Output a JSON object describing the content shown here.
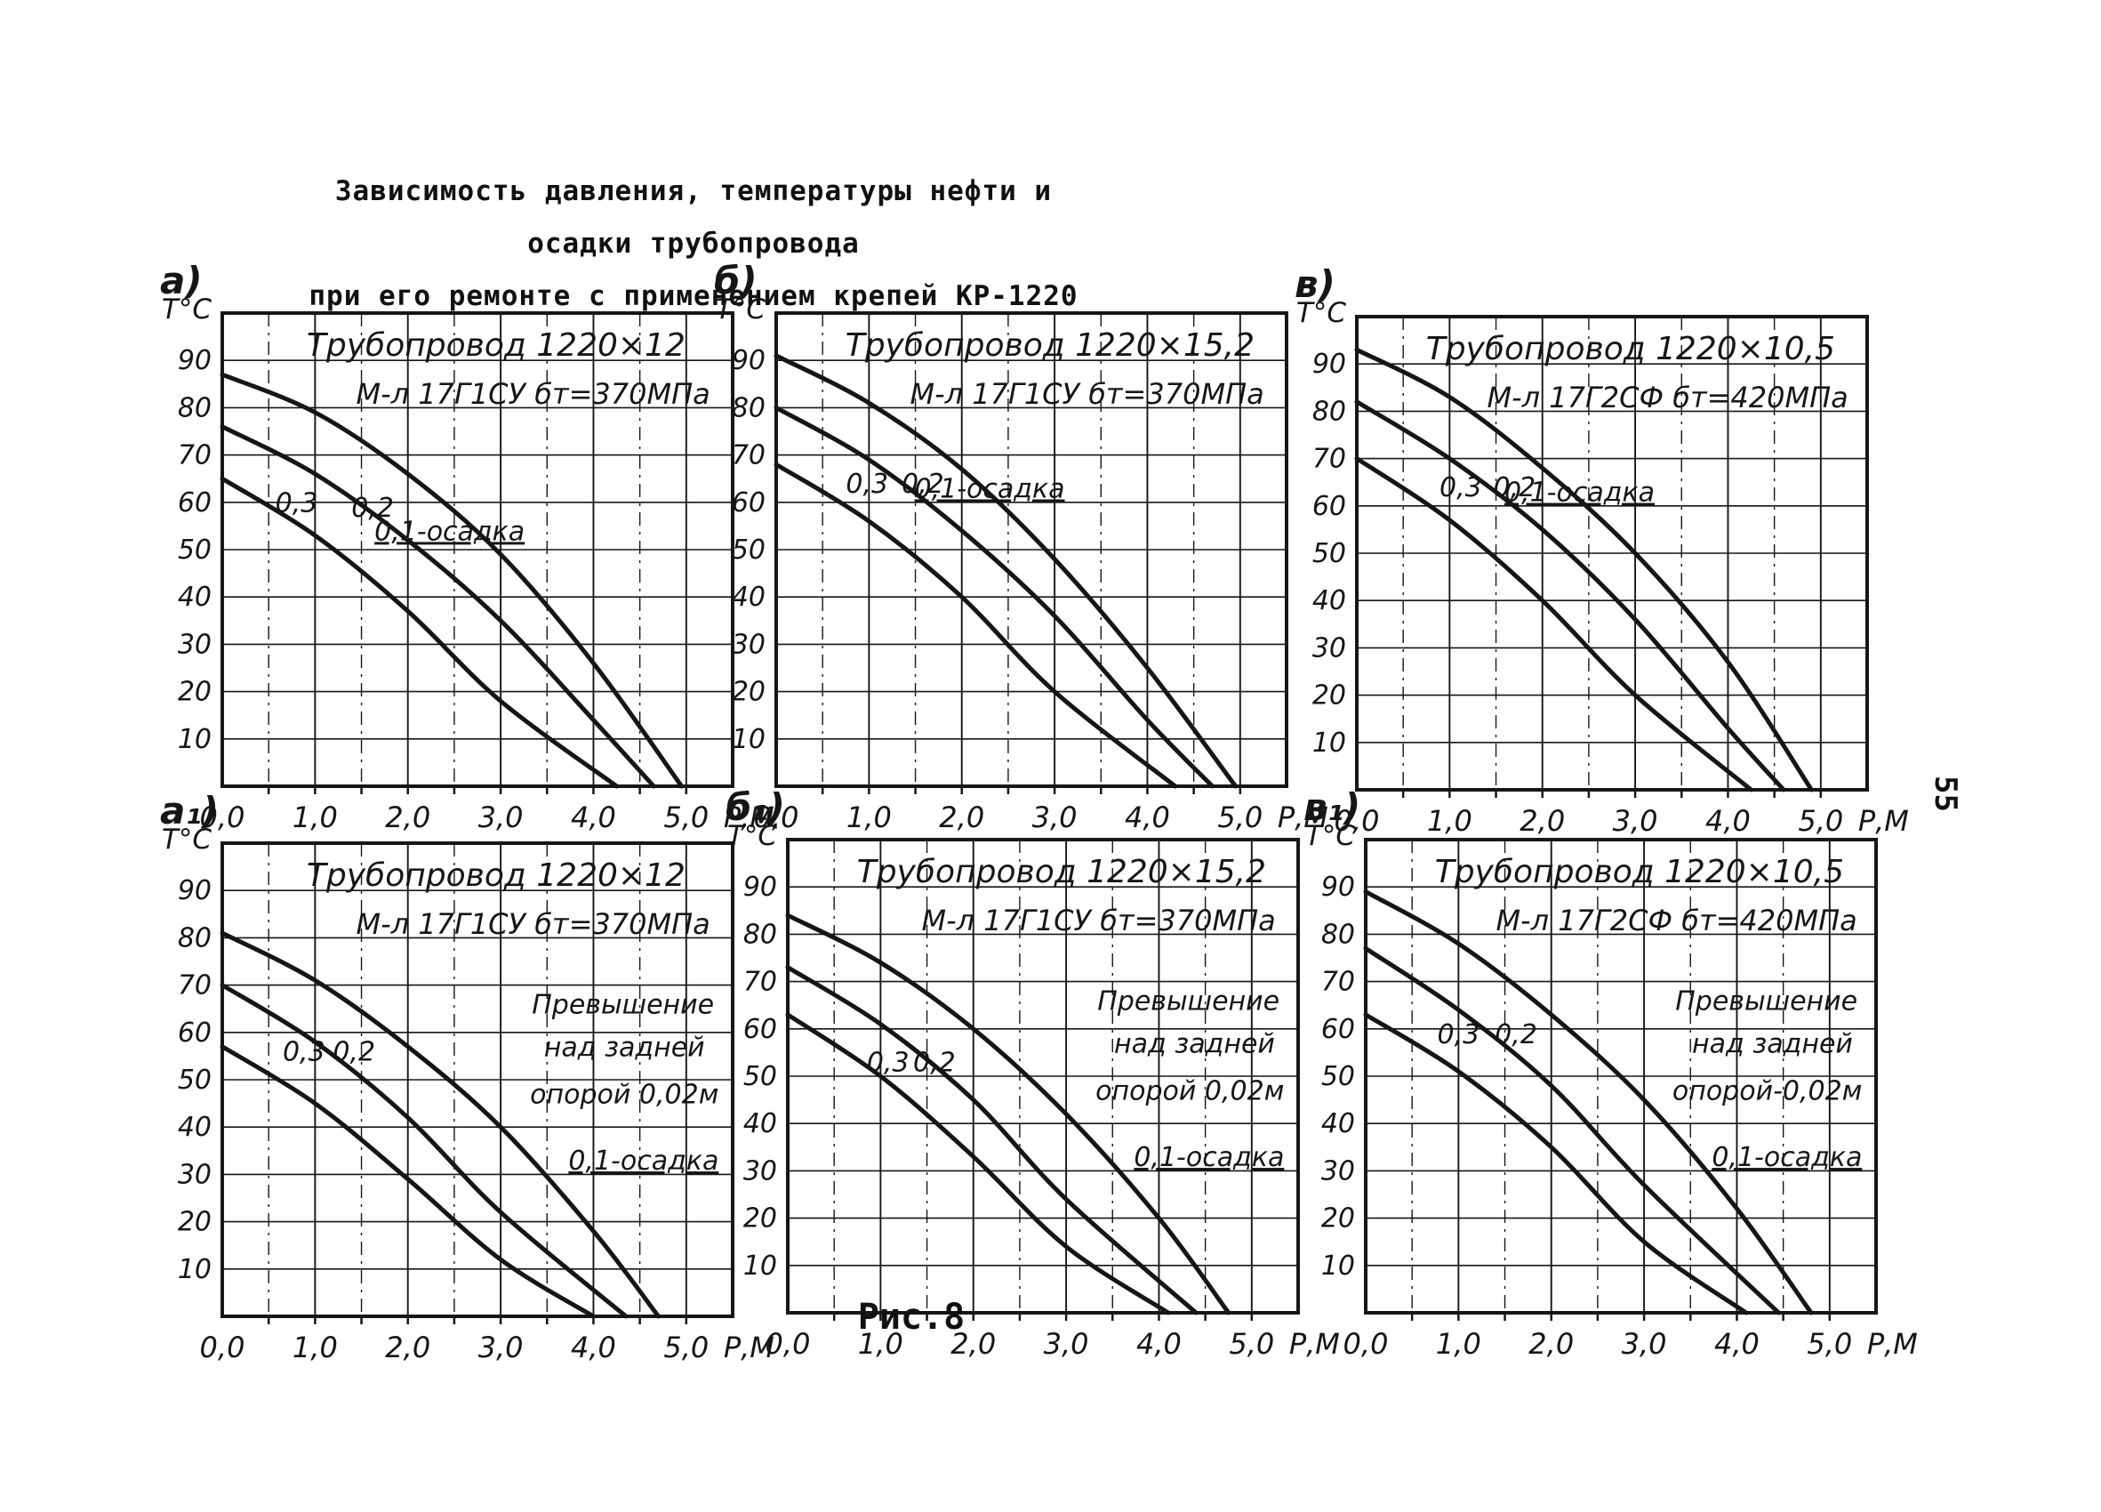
{
  "page": {
    "title_line1": "Зависимость давления, температуры нефти и осадки трубопровода",
    "title_line2": "при его ремонте с применением крепей КР-1220",
    "figure_caption": "Рис.8",
    "page_number": "55"
  },
  "chart_data": [
    {
      "type": "line",
      "panel_label": "а)",
      "title": "Трубопровод 1220×12",
      "subtitle": "М-л 17Г1СУ бт=370МПа",
      "ylabel": "Т°С",
      "xlabel": "Р,МПа",
      "x_ticks": [
        "0,0",
        "1,0",
        "2,0",
        "3,0",
        "4,0",
        "5,0"
      ],
      "y_ticks": [
        "90",
        "80",
        "70",
        "60",
        "50",
        "40",
        "30",
        "20",
        "10"
      ],
      "xlim": [
        0,
        5.5
      ],
      "ylim": [
        0,
        100
      ],
      "grid": "on",
      "series": [
        {
          "name": "0,1-осадка",
          "underline": true,
          "label_x": 2.45,
          "label_y": 52,
          "x": [
            0,
            1,
            2,
            3,
            4,
            4.95
          ],
          "y": [
            87,
            79,
            66,
            49,
            26,
            0
          ]
        },
        {
          "name": "0,2",
          "underline": false,
          "label_x": 1.62,
          "label_y": 57,
          "x": [
            0,
            1,
            2,
            3,
            4,
            4.65
          ],
          "y": [
            76,
            66,
            52,
            35,
            14,
            0
          ]
        },
        {
          "name": "0,3",
          "underline": false,
          "label_x": 0.8,
          "label_y": 58,
          "x": [
            0,
            1,
            2,
            3,
            4.25
          ],
          "y": [
            65,
            53,
            37,
            18,
            0
          ]
        }
      ],
      "annotation": []
    },
    {
      "type": "line",
      "panel_label": "б)",
      "title": "Трубопровод 1220×15,2",
      "subtitle": "М-л 17Г1СУ бт=370МПа",
      "ylabel": "Т°С",
      "xlabel": "Р,МПа",
      "x_ticks": [
        "0,0",
        "1,0",
        "2,0",
        "3,0",
        "4,0",
        "5,0"
      ],
      "y_ticks": [
        "90",
        "80",
        "70",
        "60",
        "50",
        "40",
        "30",
        "20",
        "10"
      ],
      "xlim": [
        0,
        5.5
      ],
      "ylim": [
        0,
        100
      ],
      "grid": "on",
      "series": [
        {
          "name": "0,1-осадка",
          "underline": true,
          "label_x": 2.3,
          "label_y": 61,
          "x": [
            0,
            1,
            2,
            3,
            4,
            4.95
          ],
          "y": [
            91,
            81,
            67,
            48,
            25,
            0
          ]
        },
        {
          "name": "0,2",
          "underline": false,
          "label_x": 1.58,
          "label_y": 62,
          "x": [
            0,
            1,
            2,
            3,
            4,
            4.7
          ],
          "y": [
            80,
            69,
            54,
            36,
            14,
            0
          ]
        },
        {
          "name": "0,3",
          "underline": false,
          "label_x": 0.98,
          "label_y": 62,
          "x": [
            0,
            1,
            2,
            3,
            4.3
          ],
          "y": [
            68,
            56,
            40,
            20,
            0
          ]
        }
      ],
      "annotation": []
    },
    {
      "type": "line",
      "panel_label": "в)",
      "title": "Трубопровод 1220×10,5",
      "subtitle": "М-л 17Г2СФ бт=420МПа",
      "ylabel": "Т°С",
      "xlabel": "Р,МПа",
      "x_ticks": [
        "0,0",
        "1,0",
        "2,0",
        "3,0",
        "4,0",
        "5,0"
      ],
      "y_ticks": [
        "90",
        "80",
        "70",
        "60",
        "50",
        "40",
        "30",
        "20",
        "10"
      ],
      "xlim": [
        0,
        5.5
      ],
      "ylim": [
        0,
        100
      ],
      "grid": "on",
      "series": [
        {
          "name": "0,1-осадка",
          "underline": true,
          "label_x": 2.4,
          "label_y": 61,
          "x": [
            0,
            1,
            2,
            3,
            4,
            4.9
          ],
          "y": [
            93,
            83,
            68,
            50,
            27,
            0
          ]
        },
        {
          "name": "0,2",
          "underline": false,
          "label_x": 1.7,
          "label_y": 62,
          "x": [
            0,
            1,
            2,
            3,
            4,
            4.6
          ],
          "y": [
            82,
            70,
            55,
            36,
            13,
            0
          ]
        },
        {
          "name": "0,3",
          "underline": false,
          "label_x": 1.12,
          "label_y": 62,
          "x": [
            0,
            1,
            2,
            3,
            4.25
          ],
          "y": [
            70,
            57,
            40,
            20,
            0
          ]
        }
      ],
      "annotation": []
    },
    {
      "type": "line",
      "panel_label": "а₁)",
      "title": "Трубопровод 1220×12",
      "subtitle": "М-л 17Г1СУ бт=370МПа",
      "ylabel": "Т°С",
      "xlabel": "Р,МПа",
      "x_ticks": [
        "0,0",
        "1,0",
        "2,0",
        "3,0",
        "4,0",
        "5,0"
      ],
      "y_ticks": [
        "90",
        "80",
        "70",
        "60",
        "50",
        "40",
        "30",
        "20",
        "10"
      ],
      "xlim": [
        0,
        5.5
      ],
      "ylim": [
        0,
        100
      ],
      "grid": "on",
      "series": [
        {
          "name": "0,1",
          "underline": false,
          "hide_label": true,
          "label_x": 2.6,
          "label_y": 40,
          "x": [
            0,
            1,
            2,
            3,
            4,
            4.7
          ],
          "y": [
            81,
            71,
            57,
            40,
            18,
            0
          ]
        },
        {
          "name": "0,2",
          "underline": false,
          "label_x": 1.42,
          "label_y": 54,
          "x": [
            0,
            1,
            2,
            3,
            4.35
          ],
          "y": [
            70,
            58,
            42,
            22,
            0
          ]
        },
        {
          "name": "0,3",
          "underline": false,
          "label_x": 0.88,
          "label_y": 54,
          "x": [
            0,
            1,
            2,
            3,
            4.0
          ],
          "y": [
            57,
            45,
            29,
            12,
            0
          ]
        }
      ],
      "annotation": [
        {
          "t": "Превышение",
          "x": 5.3,
          "y": 64,
          "u": false
        },
        {
          "t": "над задней",
          "x": 5.2,
          "y": 55,
          "u": false
        },
        {
          "t": "опорой 0,02м",
          "x": 5.35,
          "y": 45,
          "u": false
        },
        {
          "t": "0,1-осадка",
          "x": 5.35,
          "y": 31,
          "u": true
        }
      ]
    },
    {
      "type": "line",
      "panel_label": "б₁)",
      "title": "Трубопровод 1220×15,2",
      "subtitle": "М-л 17Г1СУ бт=370МПа",
      "ylabel": "Т°С",
      "xlabel": "Р,МПа",
      "x_ticks": [
        "0,0",
        "1,0",
        "2,0",
        "3,0",
        "4,0",
        "5,0"
      ],
      "y_ticks": [
        "90",
        "80",
        "70",
        "60",
        "50",
        "40",
        "30",
        "20",
        "10"
      ],
      "xlim": [
        0,
        5.5
      ],
      "ylim": [
        0,
        100
      ],
      "grid": "on",
      "series": [
        {
          "name": "0,1",
          "underline": false,
          "hide_label": true,
          "label_x": 2.7,
          "label_y": 40,
          "x": [
            0,
            1,
            2,
            3,
            4,
            4.75
          ],
          "y": [
            84,
            74,
            60,
            42,
            20,
            0
          ]
        },
        {
          "name": "0,2",
          "underline": false,
          "label_x": 1.58,
          "label_y": 51,
          "x": [
            0,
            1,
            2,
            3,
            4.4
          ],
          "y": [
            73,
            61,
            45,
            24,
            0
          ]
        },
        {
          "name": "0,3",
          "underline": false,
          "label_x": 1.08,
          "label_y": 51,
          "x": [
            0,
            1,
            2,
            3,
            4.1
          ],
          "y": [
            63,
            50,
            33,
            14,
            0
          ]
        }
      ],
      "annotation": [
        {
          "t": "Превышение",
          "x": 5.3,
          "y": 64,
          "u": false
        },
        {
          "t": "над задней",
          "x": 5.25,
          "y": 55,
          "u": false
        },
        {
          "t": "опорой 0,02м",
          "x": 5.35,
          "y": 45,
          "u": false
        },
        {
          "t": "0,1-осадка",
          "x": 5.35,
          "y": 31,
          "u": true
        }
      ]
    },
    {
      "type": "line",
      "panel_label": "в₁)",
      "title": "Трубопровод 1220×10,5",
      "subtitle": "М-л 17Г2СФ бт=420МПа",
      "ylabel": "Т°С",
      "xlabel": "Р,МПа",
      "x_ticks": [
        "0,0",
        "1,0",
        "2,0",
        "3,0",
        "4,0",
        "5,0"
      ],
      "y_ticks": [
        "90",
        "80",
        "70",
        "60",
        "50",
        "40",
        "30",
        "20",
        "10"
      ],
      "xlim": [
        0,
        5.5
      ],
      "ylim": [
        0,
        100
      ],
      "grid": "on",
      "series": [
        {
          "name": "0,1",
          "underline": false,
          "hide_label": true,
          "label_x": 2.7,
          "label_y": 40,
          "x": [
            0,
            1,
            2,
            3,
            4,
            4.8
          ],
          "y": [
            89,
            78,
            63,
            45,
            22,
            0
          ]
        },
        {
          "name": "0,2",
          "underline": false,
          "label_x": 1.62,
          "label_y": 57,
          "x": [
            0,
            1,
            2,
            3,
            4.45
          ],
          "y": [
            77,
            64,
            48,
            27,
            0
          ]
        },
        {
          "name": "0,3",
          "underline": false,
          "label_x": 1.0,
          "label_y": 57,
          "x": [
            0,
            1,
            2,
            3,
            4.1
          ],
          "y": [
            63,
            51,
            35,
            15,
            0
          ]
        }
      ],
      "annotation": [
        {
          "t": "Превышение",
          "x": 5.3,
          "y": 64,
          "u": false
        },
        {
          "t": "над задней",
          "x": 5.25,
          "y": 55,
          "u": false
        },
        {
          "t": "опорой-0,02м",
          "x": 5.35,
          "y": 45,
          "u": false
        },
        {
          "t": "0,1-осадка",
          "x": 5.35,
          "y": 31,
          "u": true
        }
      ]
    }
  ]
}
